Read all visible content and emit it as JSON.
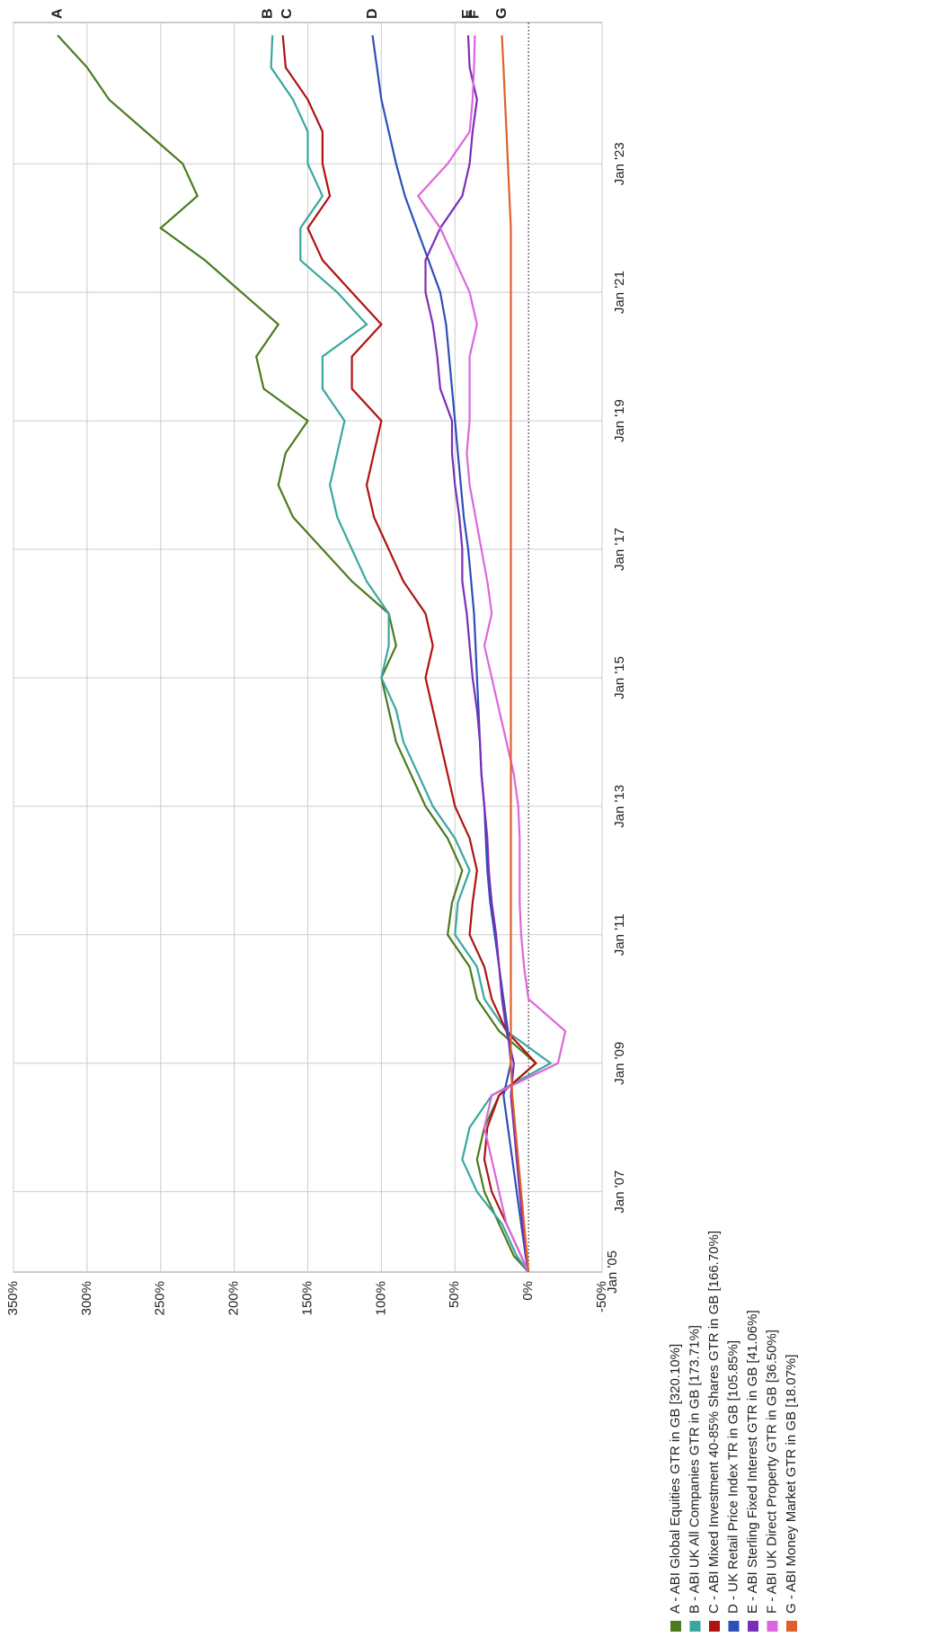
{
  "chart_data": {
    "type": "line",
    "x": [
      2005.75,
      2006,
      2006.5,
      2007,
      2007.5,
      2008,
      2008.5,
      2009,
      2009.5,
      2010,
      2010.5,
      2011,
      2011.5,
      2012,
      2012.5,
      2013,
      2013.5,
      2014,
      2014.5,
      2015,
      2015.5,
      2016,
      2016.5,
      2017,
      2017.5,
      2018,
      2018.5,
      2019,
      2019.5,
      2020,
      2020.5,
      2021,
      2021.5,
      2022,
      2022.5,
      2023,
      2023.5,
      2024,
      2024.5,
      2025
    ],
    "xstart_label": "Jan '05",
    "xlim": [
      2005.75,
      2025.2
    ],
    "xticks": [
      {
        "value": 2007,
        "label": "Jan '07"
      },
      {
        "value": 2009,
        "label": "Jan '09"
      },
      {
        "value": 2011,
        "label": "Jan '11"
      },
      {
        "value": 2013,
        "label": "Jan '13"
      },
      {
        "value": 2015,
        "label": "Jan '15"
      },
      {
        "value": 2017,
        "label": "Jan '17"
      },
      {
        "value": 2019,
        "label": "Jan '19"
      },
      {
        "value": 2021,
        "label": "Jan '21"
      },
      {
        "value": 2023,
        "label": "Jan '23"
      }
    ],
    "ylim": [
      -50,
      350
    ],
    "yticks": [
      {
        "value": -50,
        "label": "-50%"
      },
      {
        "value": 0,
        "label": "0%"
      },
      {
        "value": 50,
        "label": "50%"
      },
      {
        "value": 100,
        "label": "100%"
      },
      {
        "value": 150,
        "label": "150%"
      },
      {
        "value": 200,
        "label": "200%"
      },
      {
        "value": 250,
        "label": "250%"
      },
      {
        "value": 300,
        "label": "300%"
      },
      {
        "value": 350,
        "label": "350%"
      }
    ],
    "grid": true,
    "series": [
      {
        "label": "A",
        "name": "A - ABI Global Equities GTR in GB [320.10%]",
        "color": "#4b7b1e",
        "values": [
          0,
          10,
          20,
          30,
          35,
          30,
          20,
          -5,
          20,
          35,
          40,
          55,
          52,
          45,
          55,
          70,
          80,
          90,
          95,
          100,
          90,
          95,
          120,
          140,
          160,
          170,
          165,
          150,
          180,
          185,
          170,
          195,
          220,
          250,
          225,
          235,
          260,
          285,
          300,
          320
        ]
      },
      {
        "label": "B",
        "name": "B - ABI UK All Companies GTR in GB [173.71%]",
        "color": "#3aa79f",
        "values": [
          0,
          8,
          18,
          35,
          45,
          40,
          25,
          -15,
          15,
          30,
          35,
          50,
          48,
          40,
          50,
          65,
          75,
          85,
          90,
          100,
          95,
          95,
          110,
          120,
          130,
          135,
          130,
          125,
          140,
          140,
          110,
          130,
          155,
          155,
          140,
          150,
          150,
          160,
          175,
          174
        ]
      },
      {
        "label": "C",
        "name": "C - ABI Mixed Investment 40-85% Shares GTR in GB [166.70%]",
        "color": "#b01212",
        "values": [
          0,
          5,
          15,
          25,
          30,
          28,
          20,
          -5,
          15,
          25,
          30,
          40,
          38,
          35,
          40,
          50,
          55,
          60,
          65,
          70,
          65,
          70,
          85,
          95,
          105,
          110,
          105,
          100,
          120,
          120,
          100,
          120,
          140,
          150,
          135,
          140,
          140,
          150,
          165,
          167
        ]
      },
      {
        "label": "D",
        "name": "D - UK Retail Price Index TR in GB [105.85%]",
        "color": "#2e4fb5",
        "values": [
          0,
          2,
          5,
          8,
          11,
          14,
          17,
          12,
          14,
          17,
          20,
          23,
          26,
          28,
          29,
          30,
          32,
          33,
          34,
          35,
          36,
          37,
          39,
          41,
          44,
          46,
          48,
          50,
          52,
          54,
          56,
          60,
          68,
          76,
          84,
          90,
          95,
          100,
          103,
          106
        ]
      },
      {
        "label": "E",
        "name": "E - ABI Sterling Fixed Interest GTR in GB [41.06%]",
        "color": "#7a2fb8",
        "values": [
          0,
          2,
          4,
          6,
          8,
          10,
          12,
          10,
          15,
          18,
          20,
          22,
          25,
          27,
          28,
          30,
          32,
          33,
          35,
          38,
          40,
          42,
          45,
          45,
          47,
          50,
          52,
          52,
          60,
          62,
          65,
          70,
          70,
          60,
          45,
          40,
          38,
          35,
          40,
          41
        ]
      },
      {
        "label": "F",
        "name": "F - ABI UK Direct Property GTR in GB [36.50%]",
        "color": "#dd66dd",
        "values": [
          0,
          5,
          15,
          20,
          25,
          30,
          25,
          -20,
          -25,
          0,
          3,
          5,
          6,
          6,
          6,
          7,
          10,
          15,
          20,
          25,
          30,
          25,
          28,
          32,
          36,
          40,
          42,
          40,
          40,
          40,
          35,
          40,
          50,
          60,
          75,
          55,
          40,
          38,
          37,
          36.5
        ]
      },
      {
        "label": "G",
        "name": "G - ABI Money Market GTR in GB [18.07%]",
        "color": "#e0602a",
        "values": [
          0,
          1,
          3,
          5,
          7,
          9,
          11,
          12,
          12,
          12,
          12,
          12,
          12,
          12,
          12,
          12,
          12,
          12,
          12,
          12,
          12,
          12,
          12,
          12,
          12,
          12,
          12,
          12,
          12,
          12,
          12,
          12,
          12,
          12,
          13,
          14,
          15,
          16,
          17,
          18.07
        ]
      }
    ]
  }
}
